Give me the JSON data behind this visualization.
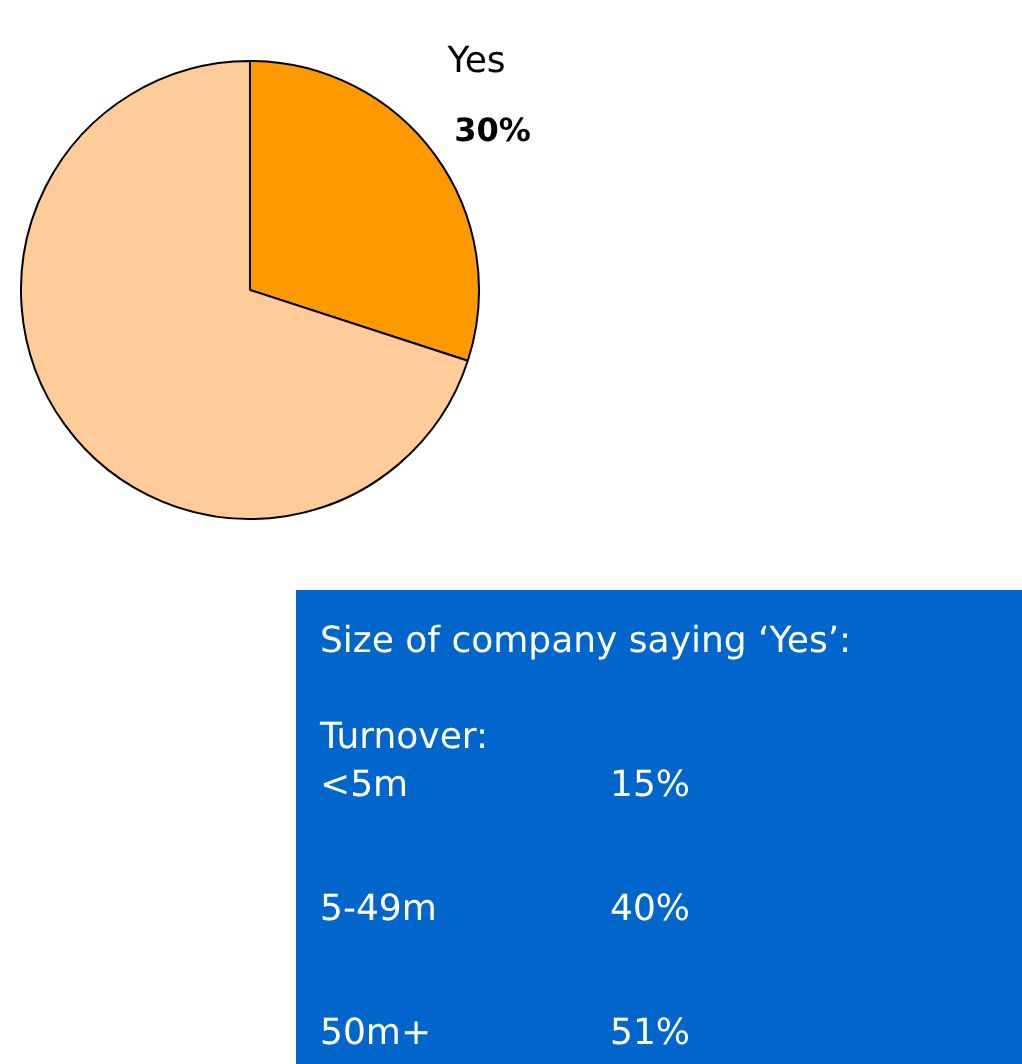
{
  "chart_data": [
    {
      "type": "pie",
      "categories": [
        "Yes",
        null
      ],
      "values": [
        30,
        70
      ],
      "colors": [
        "#ff9900",
        "#ffcc99"
      ],
      "value_labels": [
        "30%",
        null
      ]
    },
    {
      "type": "other",
      "title": "Size of company saying ‘Yes’:",
      "subtitle": "Turnover:",
      "categories": [
        "<5m",
        "5-49m",
        "50m+"
      ],
      "values": [
        15,
        40,
        51
      ],
      "value_labels": [
        "15%",
        "40%",
        "51%"
      ],
      "color": "#0066cc"
    }
  ]
}
